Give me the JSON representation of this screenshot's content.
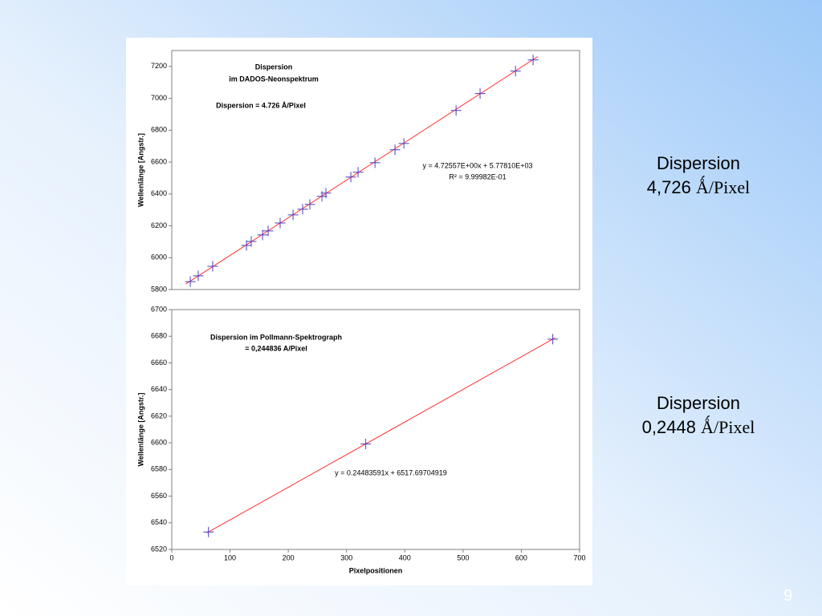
{
  "chart_data": [
    {
      "type": "scatter",
      "title": [
        "Dispersion",
        "im DADOS-Neonspektrum"
      ],
      "annotations": [
        "Dispersion = 4.726 Å/Pixel",
        "y = 4.72557E+00x + 5.77810E+03",
        "R² = 9.99982E-01"
      ],
      "ylabel": "Wellenlänge [Angstr.]",
      "xlim": [
        0,
        350
      ],
      "ylim": [
        5800,
        7300
      ],
      "yticks": [
        5800,
        6000,
        6200,
        6400,
        6600,
        6800,
        7000,
        7200
      ],
      "series": [
        {
          "color": "#4b3fbf",
          "x": [
            15.9,
            22.7,
            35.1,
            64.1,
            68.2,
            77.9,
            82.7,
            93.0,
            104.1,
            112.3,
            118.5,
            128.9,
            132.3,
            153.7,
            159.9,
            174.4,
            191.6,
            199.2,
            244.0,
            264.6,
            295.0,
            310.1
          ],
          "values": [
            5850,
            5886,
            5946,
            6077,
            6102,
            6143,
            6168,
            6218,
            6269,
            6304,
            6334,
            6385,
            6405,
            6506,
            6536,
            6596,
            6677,
            6717,
            6924,
            7030,
            7171,
            7241
          ]
        }
      ],
      "fit": {
        "color": "#ff3030",
        "x": [
          12,
          314
        ],
        "values": [
          5834.7,
          7261.8
        ]
      }
    },
    {
      "type": "scatter",
      "title": [
        "Dispersion im Pollmann-Spektrograph",
        "= 0,244836 A/Pixel"
      ],
      "annotations": [
        "y = 0.24483591x + 6517.69704919"
      ],
      "ylabel": "Wellenlänge [Angstr.]",
      "xlabel": "Pixelpositionen",
      "xlim": [
        0,
        700
      ],
      "ylim": [
        6520,
        6700
      ],
      "xticks": [
        0,
        100,
        200,
        300,
        400,
        500,
        600,
        700
      ],
      "yticks": [
        6520,
        6540,
        6560,
        6580,
        6600,
        6620,
        6640,
        6660,
        6680,
        6700
      ],
      "series": [
        {
          "color": "#4b3fbf",
          "x": [
            63,
            333,
            654
          ],
          "values": [
            6533.1,
            6599.2,
            6677.8
          ]
        }
      ],
      "fit": {
        "color": "#ff3030",
        "x": [
          60,
          658
        ],
        "values": [
          6532.4,
          6678.8
        ]
      }
    }
  ],
  "slide": {
    "captions": [
      {
        "label": "Dispersion",
        "value": "4,726",
        "unit": "Ǻ/Pixel"
      },
      {
        "label": "Dispersion",
        "value": "0,2448",
        "unit": "Ǻ/Pixel"
      }
    ],
    "page_number": "9"
  }
}
